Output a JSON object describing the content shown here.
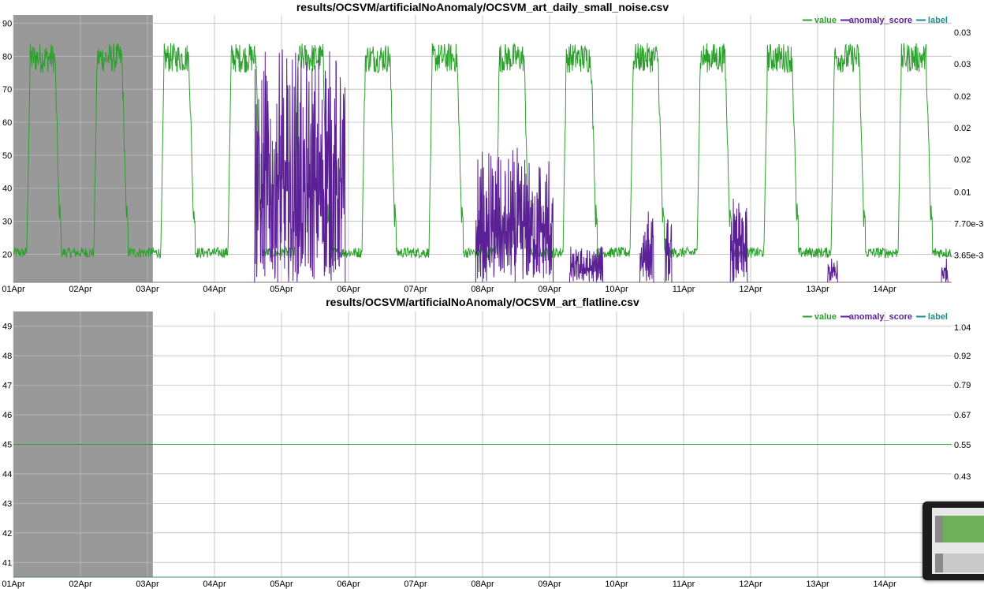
{
  "chart_data": [
    {
      "type": "line",
      "title": "results/OCSVM/artificialNoAnomaly/OCSVM_art_daily_small_noise.csv",
      "x_ticks": [
        "01Apr",
        "02Apr",
        "03Apr",
        "04Apr",
        "05Apr",
        "06Apr",
        "07Apr",
        "08Apr",
        "09Apr",
        "10Apr",
        "11Apr",
        "12Apr",
        "13Apr",
        "14Apr"
      ],
      "x_range_days": [
        0,
        14
      ],
      "y_left_ticks": [
        "20",
        "30",
        "40",
        "50",
        "60",
        "70",
        "80",
        "90"
      ],
      "y_left_range": [
        11.5,
        92.5
      ],
      "y_right_ticks": [
        "3.65e-3",
        "7.70e-3",
        "0.01",
        "0.02",
        "0.02",
        "0.02",
        "0.03",
        "0.03"
      ],
      "shaded_region_days": [
        0,
        2.08
      ],
      "legend": [
        "value",
        "anomaly_score",
        "label"
      ],
      "series": [
        {
          "name": "value",
          "color": "#2ca02c",
          "pattern": "daily",
          "low": 20.5,
          "high": 79.5,
          "noise_low": 1.6,
          "noise_high": 4.5
        },
        {
          "name": "anomaly_score",
          "color": "#5b1f96",
          "bursts_days": [
            [
              3.6,
              4.95,
              1.0
            ],
            [
              6.9,
              8.05,
              0.55
            ],
            [
              8.3,
              8.8,
              0.15
            ],
            [
              9.35,
              9.55,
              0.3
            ],
            [
              9.72,
              9.82,
              0.3
            ],
            [
              10.7,
              10.95,
              0.35
            ],
            [
              12.15,
              12.3,
              0.1
            ],
            [
              13.85,
              13.95,
              0.1
            ]
          ]
        },
        {
          "name": "label",
          "color": "#1f8b8b",
          "values_all": 0
        }
      ]
    },
    {
      "type": "line",
      "title": "results/OCSVM/artificialNoAnomaly/OCSVM_art_flatline.csv",
      "x_ticks": [
        "01Apr",
        "02Apr",
        "03Apr",
        "04Apr",
        "05Apr",
        "06Apr",
        "07Apr",
        "08Apr",
        "09Apr",
        "10Apr",
        "11Apr",
        "12Apr",
        "13Apr",
        "14Apr"
      ],
      "x_range_days": [
        0,
        14
      ],
      "y_left_ticks": [
        "41",
        "42",
        "43",
        "44",
        "45",
        "46",
        "47",
        "48",
        "49"
      ],
      "y_left_range": [
        40.5,
        49.5
      ],
      "y_right_ticks": [
        "0.43",
        "0.55",
        "0.67",
        "0.79",
        "0.92",
        "1.04"
      ],
      "shaded_region_days": [
        0,
        2.08
      ],
      "legend": [
        "value",
        "anomaly_score",
        "label"
      ],
      "series": [
        {
          "name": "value",
          "color": "#2ca02c",
          "constant": 45
        },
        {
          "name": "anomaly_score",
          "color": "#5b1f96",
          "constant": 0
        },
        {
          "name": "label",
          "color": "#1f8b8b",
          "constant": 0
        }
      ]
    }
  ]
}
